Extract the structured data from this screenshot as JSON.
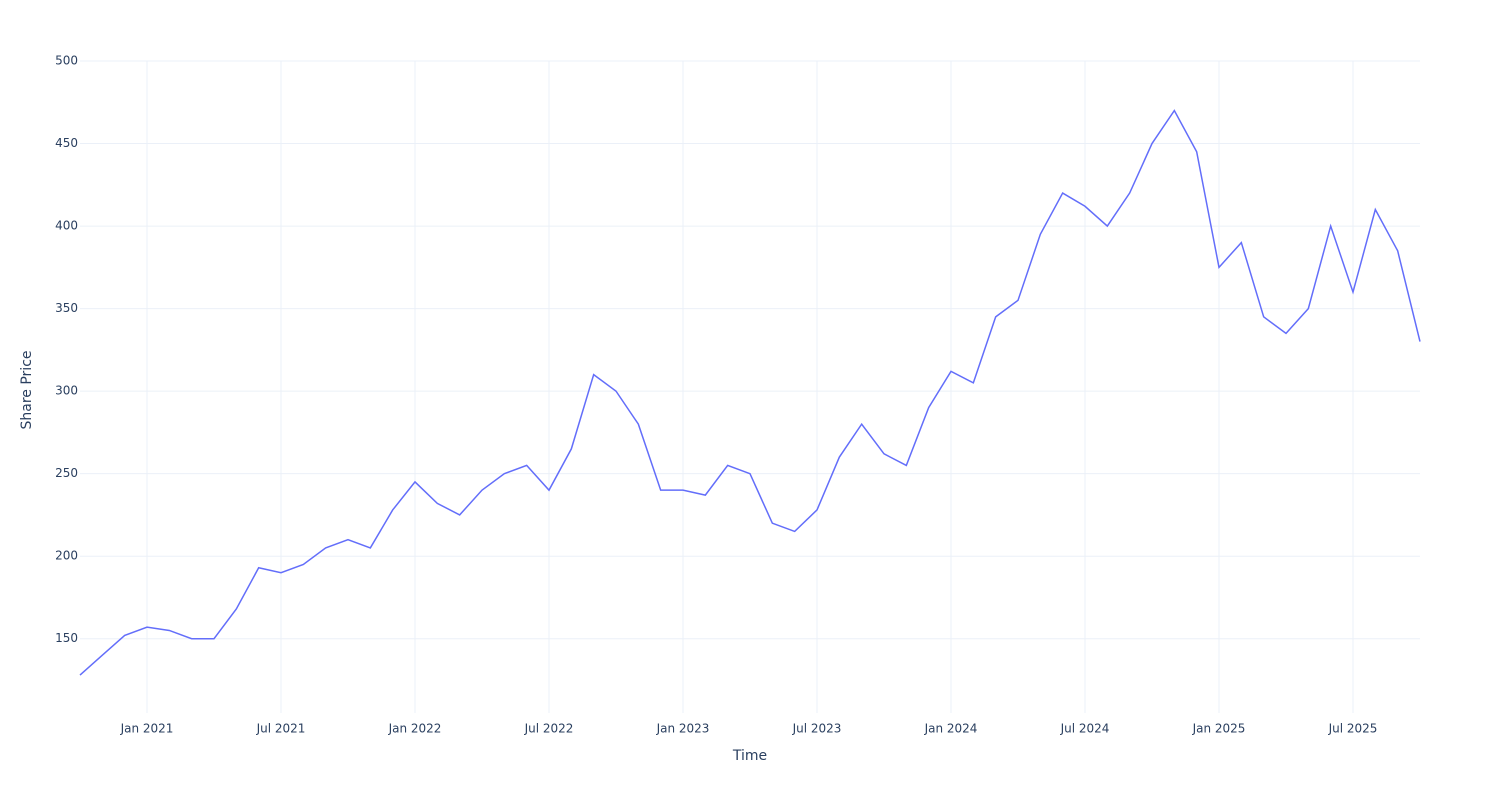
{
  "chart_data": {
    "type": "line",
    "x_label": "Time",
    "y_label": "Share Price",
    "x": [
      "2020-10",
      "2020-11",
      "2020-12",
      "2021-01",
      "2021-02",
      "2021-03",
      "2021-04",
      "2021-05",
      "2021-06",
      "2021-07",
      "2021-08",
      "2021-09",
      "2021-10",
      "2021-11",
      "2021-12",
      "2022-01",
      "2022-02",
      "2022-03",
      "2022-04",
      "2022-05",
      "2022-06",
      "2022-07",
      "2022-08",
      "2022-09",
      "2022-10",
      "2022-11",
      "2022-12",
      "2023-01",
      "2023-02",
      "2023-03",
      "2023-04",
      "2023-05",
      "2023-06",
      "2023-07",
      "2023-08",
      "2023-09",
      "2023-10",
      "2023-11",
      "2023-12",
      "2024-01",
      "2024-02",
      "2024-03",
      "2024-04",
      "2024-05",
      "2024-06",
      "2024-07",
      "2024-08",
      "2024-09",
      "2024-10",
      "2024-11",
      "2024-12",
      "2025-01",
      "2025-02",
      "2025-03",
      "2025-04",
      "2025-05",
      "2025-06",
      "2025-07",
      "2025-08",
      "2025-09",
      "2025-10"
    ],
    "series": [
      {
        "name": "Share Price",
        "color": "#636efa",
        "values": [
          128,
          140,
          152,
          157,
          155,
          150,
          150,
          168,
          193,
          190,
          195,
          205,
          210,
          205,
          228,
          245,
          232,
          225,
          240,
          250,
          255,
          240,
          265,
          310,
          300,
          280,
          240,
          240,
          237,
          255,
          250,
          220,
          215,
          228,
          260,
          280,
          262,
          255,
          290,
          312,
          305,
          345,
          355,
          395,
          420,
          412,
          400,
          420,
          450,
          470,
          445,
          375,
          390,
          345,
          335,
          350,
          400,
          360,
          410,
          385,
          330
        ]
      }
    ],
    "xlim": [
      "2020-10",
      "2025-10"
    ],
    "xticks": [
      {
        "value": "2021-01",
        "label": "Jan 2021"
      },
      {
        "value": "2021-07",
        "label": "Jul 2021"
      },
      {
        "value": "2022-01",
        "label": "Jan 2022"
      },
      {
        "value": "2022-07",
        "label": "Jul 2022"
      },
      {
        "value": "2023-01",
        "label": "Jan 2023"
      },
      {
        "value": "2023-07",
        "label": "Jul 2023"
      },
      {
        "value": "2024-01",
        "label": "Jan 2024"
      },
      {
        "value": "2024-07",
        "label": "Jul 2024"
      },
      {
        "value": "2025-01",
        "label": "Jan 2025"
      },
      {
        "value": "2025-07",
        "label": "Jul 2025"
      }
    ],
    "ylim": [
      105,
      500
    ],
    "yticks": [
      150,
      200,
      250,
      300,
      350,
      400,
      450,
      500
    ],
    "grid": true
  }
}
